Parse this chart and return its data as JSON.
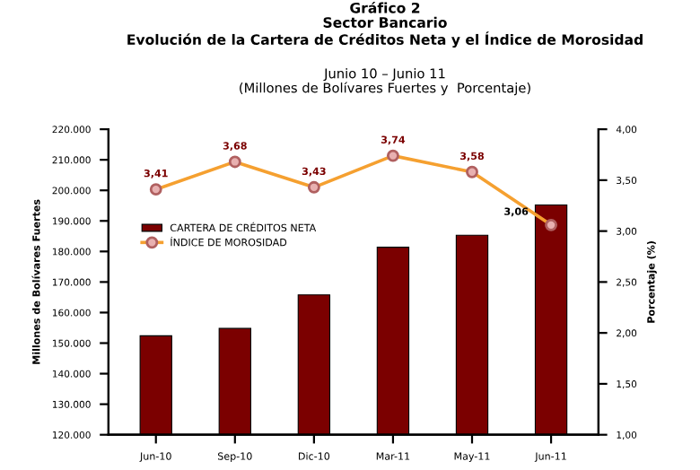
{
  "chart_data": {
    "type": "bar",
    "title": "Gráfico 2\nSector Bancario\nEvolución de la Cartera de Créditos Neta y el Índice de Morosidad",
    "subtitle": "Junio 10 – Junio 11\n(Millones de Bolívares Fuertes y  Porcentaje)",
    "categories": [
      "Jun-10",
      "Sep-10",
      "Dic-10",
      "Mar-11",
      "May-11",
      "Jun-11"
    ],
    "ylabel": "Millones de Bolívares Fuertes",
    "y2label": "Porcentaje (%)",
    "series": [
      {
        "name": "CARTERA DE CRÉDITOS NETA",
        "color": "#7b0000",
        "values": [
          152400,
          154800,
          165800,
          181400,
          185300,
          195200
        ]
      },
      {
        "name": "ÍNDICE DE MOROSIDAD",
        "type": "line",
        "axis": "y2",
        "color": "#f5a030",
        "marker": "circle",
        "values": [
          3.41,
          3.68,
          3.43,
          3.74,
          3.58,
          3.06
        ],
        "value_labels": [
          "3,41",
          "3,68",
          "3,43",
          "3,74",
          "3,58",
          "3,06"
        ]
      }
    ],
    "ylim": [
      120000,
      220000
    ],
    "yticks": [
      {
        "value": 120000,
        "label": "120.000"
      },
      {
        "value": 130000,
        "label": "130.000"
      },
      {
        "value": 140000,
        "label": "140.000"
      },
      {
        "value": 150000,
        "label": "150.000"
      },
      {
        "value": 160000,
        "label": "160.000"
      },
      {
        "value": 170000,
        "label": "170.000"
      },
      {
        "value": 180000,
        "label": "180.000"
      },
      {
        "value": 190000,
        "label": "190.000"
      },
      {
        "value": 200000,
        "label": "200.000"
      },
      {
        "value": 210000,
        "label": "210.000"
      },
      {
        "value": 220000,
        "label": "220.000"
      }
    ],
    "y2lim": [
      1,
      4
    ],
    "y2ticks": [
      {
        "value": 1,
        "label": "1,00"
      },
      {
        "value": 1.5,
        "label": "1,50"
      },
      {
        "value": 2,
        "label": "2,00"
      },
      {
        "value": 2.5,
        "label": "2,50"
      },
      {
        "value": 3,
        "label": "3,00"
      },
      {
        "value": 3.5,
        "label": "3,50"
      },
      {
        "value": 4,
        "label": "4,00"
      }
    ],
    "legend": "top left",
    "grid": false
  }
}
